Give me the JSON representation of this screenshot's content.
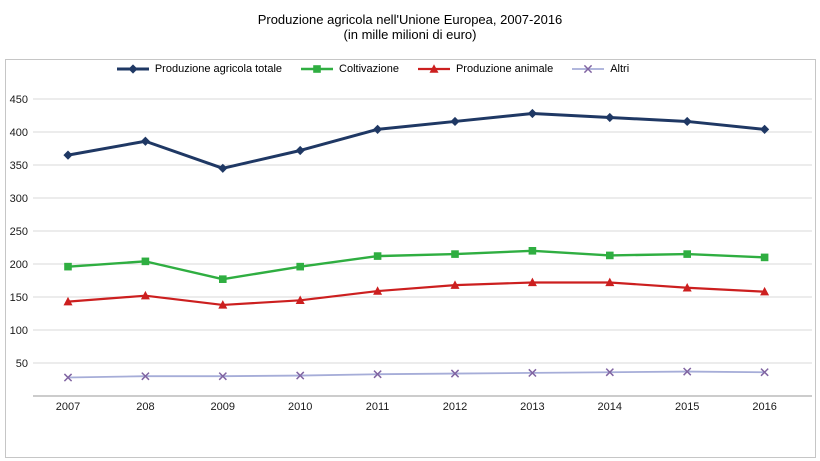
{
  "title": {
    "line1": "Produzione agricola nell'Unione Europea, 2007-2016",
    "line2": "(in mille milioni di euro)"
  },
  "chart_data": {
    "type": "line",
    "title": "Produzione agricola nell'Unione Europea, 2007-2016 (in mille milioni di euro)",
    "categories": [
      "2007",
      "208",
      "2009",
      "2010",
      "2011",
      "2012",
      "2013",
      "2014",
      "2015",
      "2016"
    ],
    "series": [
      {
        "id": "totale",
        "name": "Produzione agricola totale",
        "color": "#1F3864",
        "marker": "diamond",
        "line_width": 3,
        "values": [
          365,
          386,
          345,
          372,
          404,
          416,
          428,
          422,
          416,
          404
        ]
      },
      {
        "id": "coltivazione",
        "name": "Coltivazione",
        "color": "#2FAE41",
        "marker": "square",
        "line_width": 2.4,
        "values": [
          196,
          204,
          177,
          196,
          212,
          215,
          220,
          213,
          215,
          210
        ]
      },
      {
        "id": "animale",
        "name": "Produzione animale",
        "color": "#CC1F1F",
        "marker": "triangle",
        "line_width": 2.2,
        "values": [
          143,
          152,
          138,
          145,
          159,
          168,
          172,
          172,
          164,
          158
        ]
      },
      {
        "id": "altri",
        "name": "Altri",
        "color": "#A6ADD8",
        "marker_color": "#8064A2",
        "marker": "x",
        "line_width": 1.8,
        "values": [
          28,
          30,
          30,
          31,
          33,
          34,
          35,
          36,
          37,
          36
        ]
      }
    ],
    "xlabel": "",
    "ylabel": "",
    "ylim": [
      0,
      450
    ],
    "yticks": [
      50,
      100,
      150,
      200,
      250,
      300,
      350,
      400,
      450
    ],
    "grid": true,
    "legend_position": "top"
  },
  "style_colors": {
    "gridline": "#d9d9d9",
    "axis": "#9a9a9a",
    "tick_label": "#1a1a1a"
  }
}
